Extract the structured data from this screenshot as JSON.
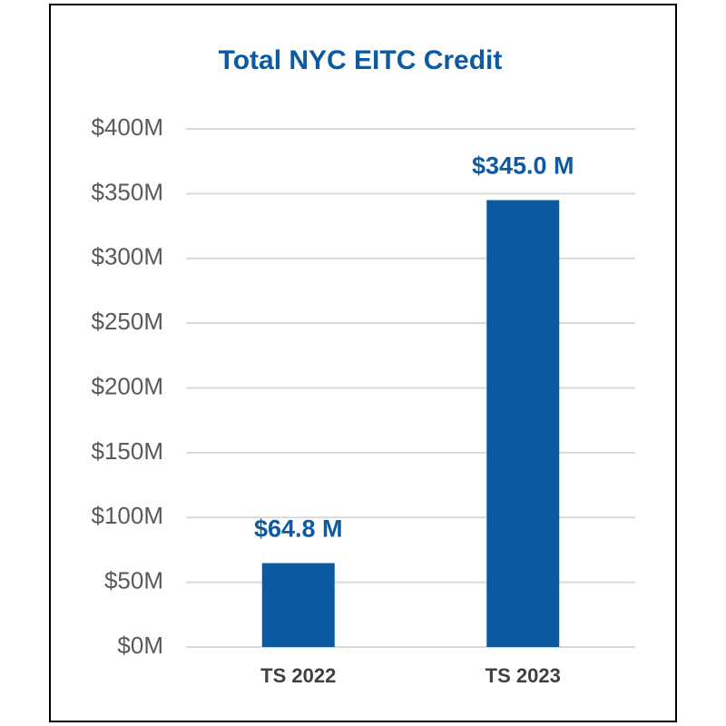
{
  "chart_data": {
    "type": "bar",
    "title": "Total NYC EITC Credit",
    "categories": [
      "TS 2022",
      "TS 2023"
    ],
    "values": [
      64.8,
      345.0
    ],
    "value_labels": [
      "$64.8 M",
      "$345.0 M"
    ],
    "color": "#0b5aa2",
    "ylim": [
      0,
      400
    ],
    "yticks": [
      {
        "value": 0,
        "label": "$0M"
      },
      {
        "value": 50,
        "label": "$50M"
      },
      {
        "value": 100,
        "label": "$100M"
      },
      {
        "value": 150,
        "label": "$150M"
      },
      {
        "value": 200,
        "label": "$200M"
      },
      {
        "value": 250,
        "label": "$250M"
      },
      {
        "value": 300,
        "label": "$300M"
      },
      {
        "value": 350,
        "label": "$350M"
      },
      {
        "value": 400,
        "label": "$400M"
      }
    ],
    "grid": true
  }
}
